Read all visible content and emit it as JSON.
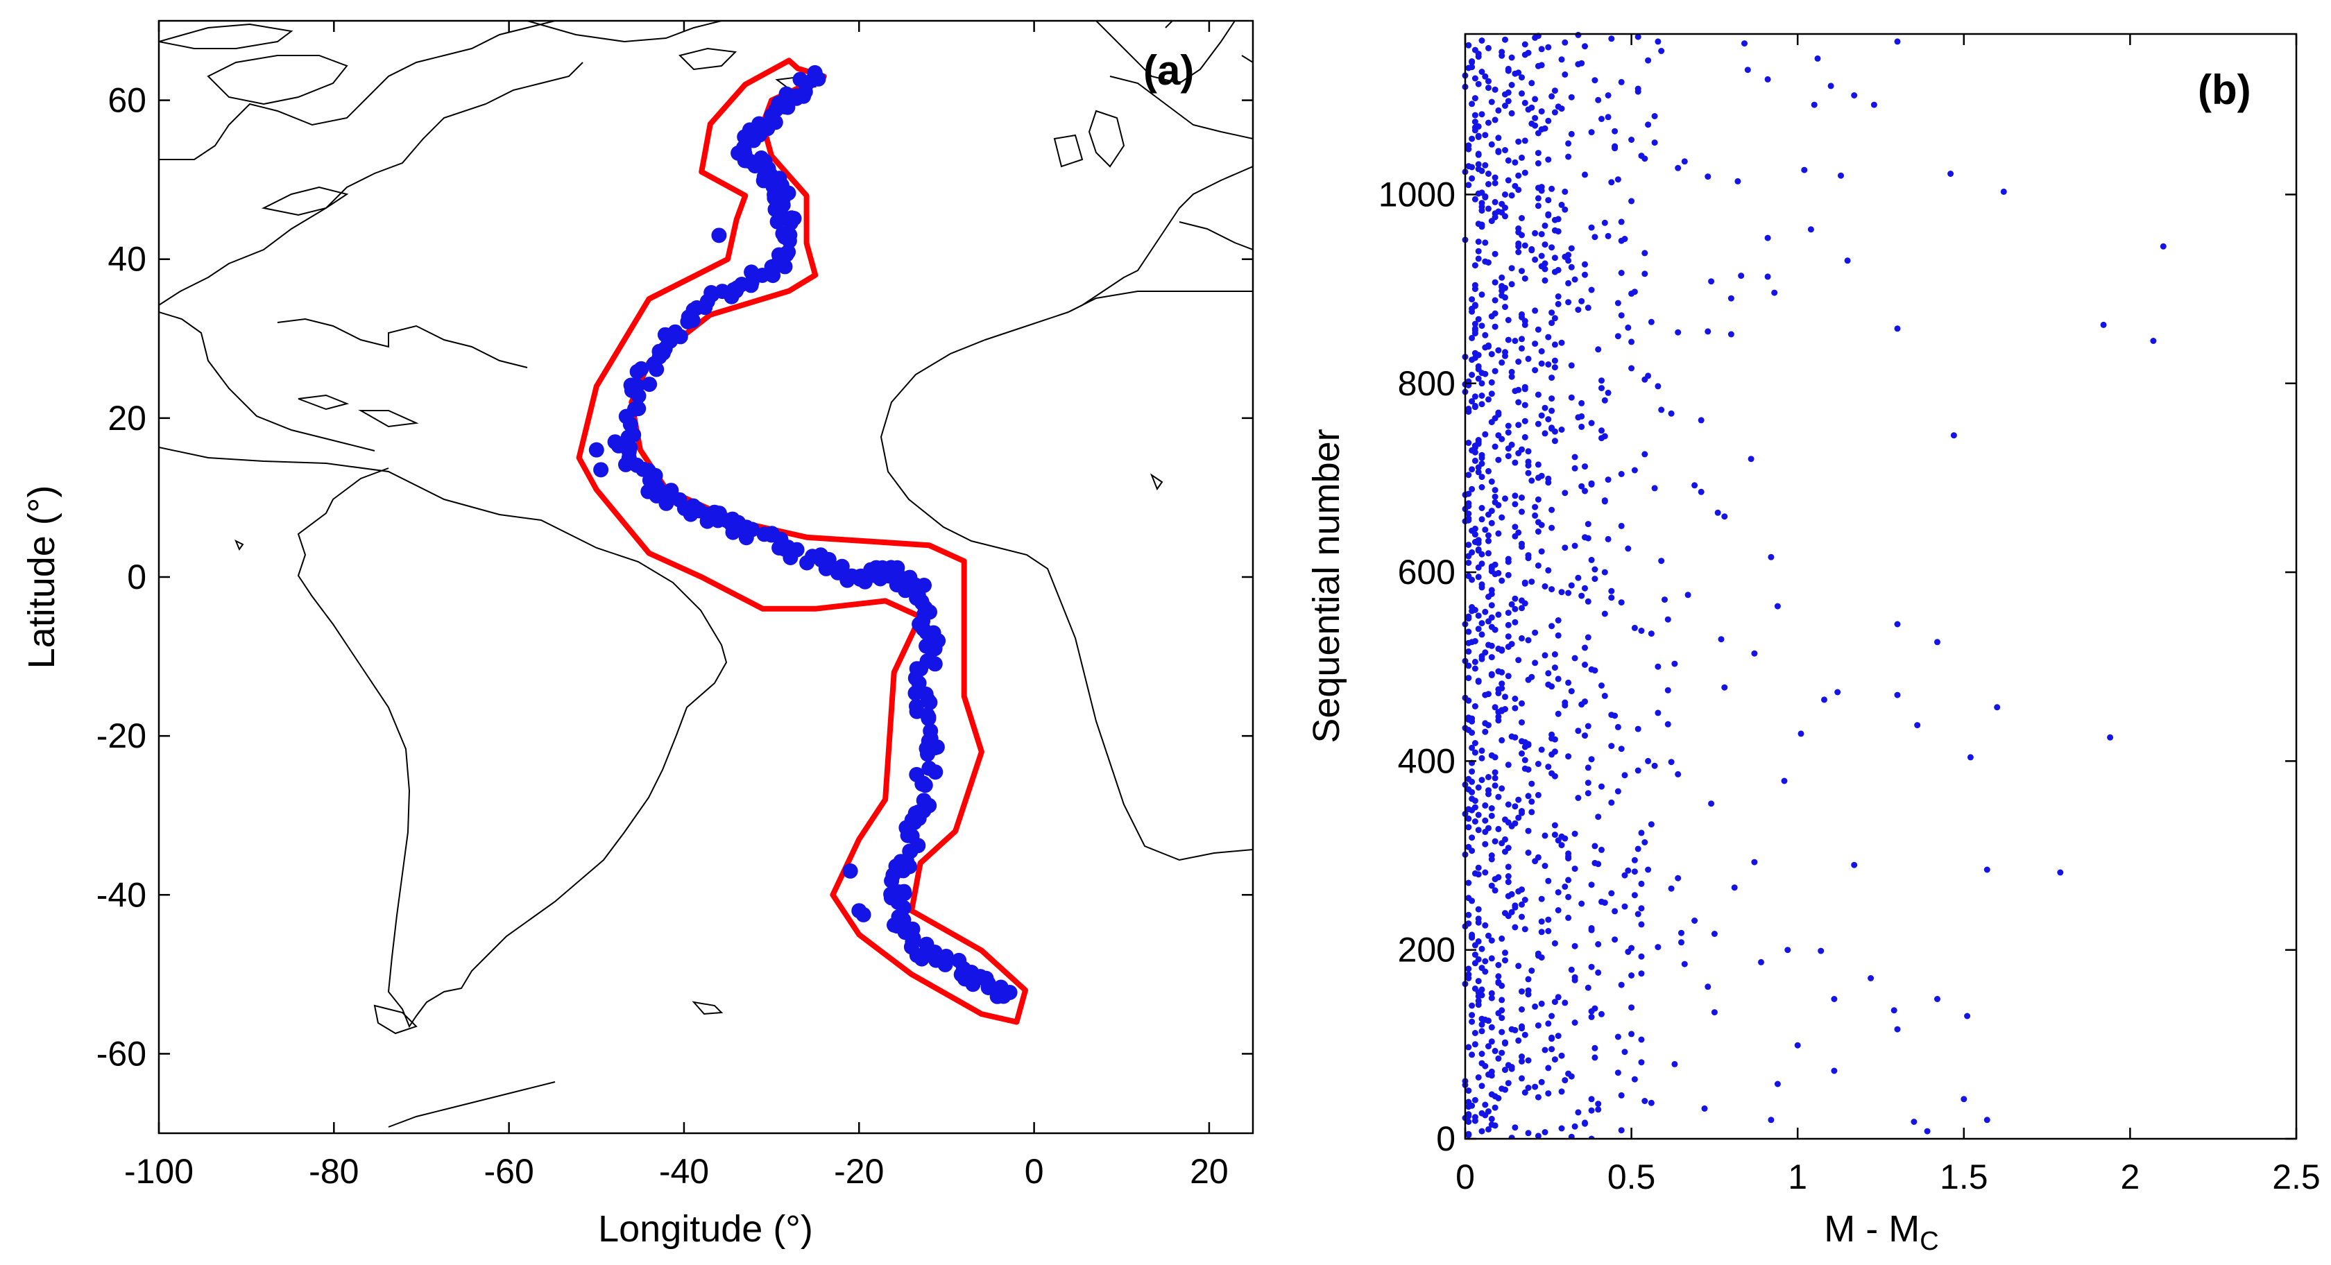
{
  "chart_data": [
    {
      "panel": "(a)",
      "type": "scatter",
      "xlabel": "Longitude (°)",
      "ylabel": "Latitude (°)",
      "xlim": [
        -100,
        25
      ],
      "ylim": [
        -70,
        70
      ],
      "xticks": [
        -100,
        -80,
        -60,
        -40,
        -20,
        0,
        20
      ],
      "yticks": [
        -60,
        -40,
        -20,
        0,
        20,
        40,
        60
      ],
      "grid": false,
      "legend": "none",
      "base_map": "coastlines-atlantic-icon",
      "colors": {
        "points": "#1414e6",
        "outline": "#ff0000",
        "coast": "#000000"
      },
      "outline": [
        [
          -27,
          64
        ],
        [
          -24,
          63
        ],
        [
          -30,
          60
        ],
        [
          -31,
          57
        ],
        [
          -30,
          53
        ],
        [
          -26,
          48
        ],
        [
          -26,
          42
        ],
        [
          -25,
          38
        ],
        [
          -28,
          36
        ],
        [
          -37,
          33
        ],
        [
          -44,
          27
        ],
        [
          -46,
          22
        ],
        [
          -45,
          16
        ],
        [
          -42,
          11
        ],
        [
          -34,
          7
        ],
        [
          -26,
          5
        ],
        [
          -12,
          4
        ],
        [
          -8,
          2
        ],
        [
          -8,
          -15
        ],
        [
          -6,
          -22
        ],
        [
          -9,
          -32
        ],
        [
          -13,
          -36
        ],
        [
          -14,
          -42
        ],
        [
          -6,
          -47
        ],
        [
          -1,
          -52
        ],
        [
          -2,
          -56
        ],
        [
          -6,
          -55
        ],
        [
          -14,
          -50
        ],
        [
          -20,
          -45
        ],
        [
          -23,
          -40
        ],
        [
          -20,
          -33
        ],
        [
          -17,
          -28
        ],
        [
          -16,
          -12
        ],
        [
          -13,
          -5
        ],
        [
          -17,
          -3
        ],
        [
          -25,
          -4
        ],
        [
          -31,
          -4
        ],
        [
          -38,
          0
        ],
        [
          -44,
          3
        ],
        [
          -50,
          11
        ],
        [
          -52,
          15
        ],
        [
          -50,
          24
        ],
        [
          -44,
          35
        ],
        [
          -35,
          40
        ],
        [
          -34,
          45
        ],
        [
          -33,
          48
        ],
        [
          -38,
          51
        ],
        [
          -37,
          57
        ],
        [
          -33,
          62
        ],
        [
          -28,
          65
        ]
      ],
      "ridge_path": [
        [
          -25,
          63
        ],
        [
          -29,
          59
        ],
        [
          -34,
          54
        ],
        [
          -31,
          52
        ],
        [
          -29,
          48
        ],
        [
          -28,
          44
        ],
        [
          -29,
          39
        ],
        [
          -35,
          36
        ],
        [
          -41,
          31
        ],
        [
          -45,
          25
        ],
        [
          -47,
          16
        ],
        [
          -43,
          11
        ],
        [
          -38,
          8
        ],
        [
          -33,
          6
        ],
        [
          -27,
          3
        ],
        [
          -20,
          0
        ],
        [
          -16,
          1
        ],
        [
          -13,
          -2
        ],
        [
          -12,
          -8
        ],
        [
          -13,
          -15
        ],
        [
          -12,
          -22
        ],
        [
          -13,
          -30
        ],
        [
          -15,
          -36
        ],
        [
          -16,
          -42
        ],
        [
          -13,
          -47
        ],
        [
          -8,
          -50
        ],
        [
          -3,
          -53
        ]
      ],
      "extra_points": [
        [
          -50,
          16
        ],
        [
          -49.5,
          13.5
        ],
        [
          -21,
          -37
        ],
        [
          -20,
          -42
        ],
        [
          -19.5,
          -42.5
        ],
        [
          -36,
          43
        ]
      ]
    },
    {
      "panel": "(b)",
      "type": "scatter",
      "xlabel": "M - M",
      "xlabel_subscript": "C",
      "ylabel": "Sequential number",
      "xlim": [
        0,
        2.5
      ],
      "ylim": [
        0,
        1170
      ],
      "xticks": [
        0,
        0.5,
        1,
        1.5,
        2,
        2.5
      ],
      "xtick_labels": [
        "0",
        "0.5",
        "1",
        "1.5",
        "2",
        "2.5"
      ],
      "yticks": [
        0,
        200,
        400,
        600,
        800,
        1000
      ],
      "grid": false,
      "legend": "none",
      "n_events": 1170,
      "magnitude_distribution": "exponential, mean about 0.23, resolution 0.01",
      "colors": {
        "points": "#1414e6"
      },
      "outliers": [
        [
          2.1,
          945
        ],
        [
          1.92,
          862
        ],
        [
          2.07,
          845
        ],
        [
          1.94,
          425
        ],
        [
          1.79,
          282
        ],
        [
          1.62,
          1003
        ],
        [
          1.46,
          1022
        ],
        [
          1.47,
          745
        ],
        [
          1.6,
          457
        ],
        [
          1.52,
          404
        ],
        [
          1.57,
          285
        ],
        [
          1.51,
          130
        ],
        [
          1.5,
          42
        ],
        [
          1.42,
          148
        ],
        [
          1.3,
          1162
        ],
        [
          1.3,
          858
        ],
        [
          1.23,
          1095
        ],
        [
          1.17,
          1105
        ],
        [
          1.15,
          930
        ],
        [
          1.13,
          1020
        ],
        [
          1.3,
          545
        ],
        [
          1.3,
          470
        ],
        [
          1.36,
          438
        ],
        [
          1.42,
          526
        ],
        [
          1.29,
          136
        ],
        [
          1.3,
          116
        ],
        [
          1.22,
          170
        ],
        [
          1.39,
          8
        ],
        [
          1.35,
          18
        ],
        [
          1.57,
          20
        ]
      ]
    }
  ],
  "panel_a": {
    "tag": "(a)"
  },
  "panel_b": {
    "tag": "(b)"
  }
}
